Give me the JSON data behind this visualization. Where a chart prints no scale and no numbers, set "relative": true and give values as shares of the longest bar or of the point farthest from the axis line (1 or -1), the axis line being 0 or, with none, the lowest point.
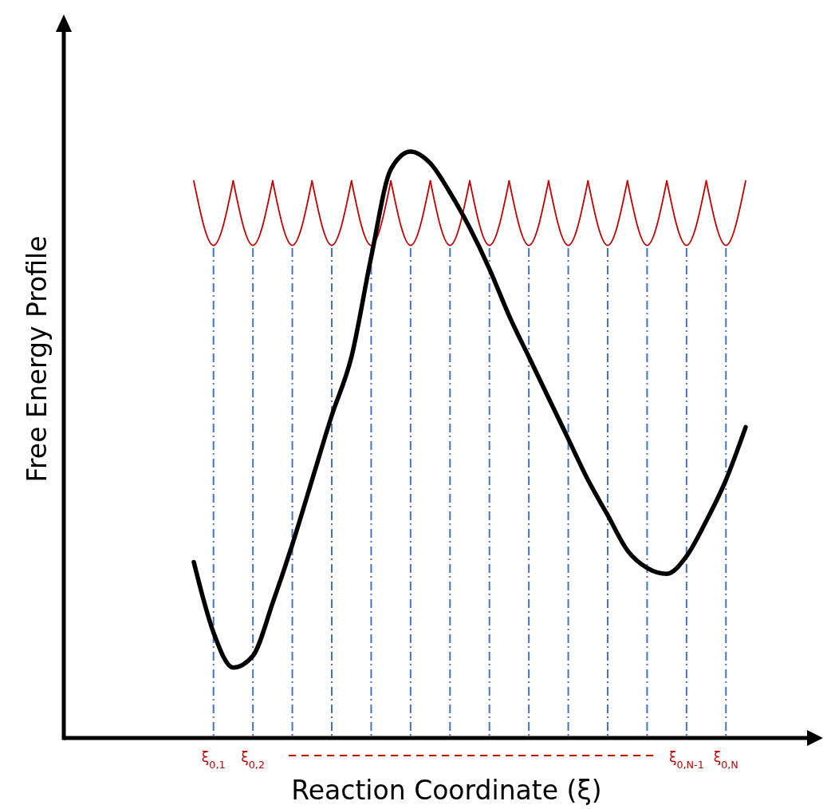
{
  "chart_data": {
    "type": "line",
    "relative": true,
    "xlabel": "Reaction Coordinate (ξ)",
    "ylabel": "Free Energy Profile",
    "tick_labels": "x",
    "categories": [
      null,
      "ξ$_{0,1}$",
      null,
      "ξ$_{0,2}$",
      null,
      null,
      null,
      null,
      null,
      null,
      null,
      null,
      null,
      null,
      null,
      null,
      null,
      null,
      null,
      null,
      null,
      null,
      null,
      null,
      null,
      "ξ$_{0,N-1}$",
      null,
      "ξ$_{0,N}$",
      null
    ],
    "series": [
      {
        "type": "bar",
        "color": "#4472c4",
        "line_style": "dashed",
        "values": [
          null,
          0.84,
          null,
          0.84,
          null,
          0.84,
          null,
          0.84,
          null,
          0.84,
          null,
          0.84,
          null,
          0.84,
          null,
          0.84,
          null,
          0.84,
          null,
          0.84,
          null,
          0.84,
          null,
          0.84,
          null,
          0.84,
          null,
          0.84,
          null
        ]
      },
      {
        "color": "#c00000",
        "values": [
          0.95,
          0.84,
          0.95,
          null,
          null,
          null,
          null,
          null,
          null,
          null,
          null,
          null,
          null,
          null,
          null,
          null,
          null,
          null,
          null,
          null,
          null,
          null,
          null,
          null,
          null,
          null,
          null,
          null,
          null
        ]
      },
      {
        "color": "#c00000",
        "values": [
          null,
          null,
          0.95,
          0.84,
          0.95,
          null,
          null,
          null,
          null,
          null,
          null,
          null,
          null,
          null,
          null,
          null,
          null,
          null,
          null,
          null,
          null,
          null,
          null,
          null,
          null,
          null,
          null,
          null,
          null
        ]
      },
      {
        "color": "#c00000",
        "values": [
          null,
          null,
          null,
          null,
          0.95,
          0.84,
          0.95,
          null,
          null,
          null,
          null,
          null,
          null,
          null,
          null,
          null,
          null,
          null,
          null,
          null,
          null,
          null,
          null,
          null,
          null,
          null,
          null,
          null,
          null
        ]
      },
      {
        "color": "#c00000",
        "values": [
          null,
          null,
          null,
          null,
          null,
          null,
          0.95,
          0.84,
          0.95,
          null,
          null,
          null,
          null,
          null,
          null,
          null,
          null,
          null,
          null,
          null,
          null,
          null,
          null,
          null,
          null,
          null,
          null,
          null,
          null
        ]
      },
      {
        "color": "#c00000",
        "values": [
          null,
          null,
          null,
          null,
          null,
          null,
          null,
          null,
          0.95,
          0.84,
          0.95,
          null,
          null,
          null,
          null,
          null,
          null,
          null,
          null,
          null,
          null,
          null,
          null,
          null,
          null,
          null,
          null,
          null,
          null
        ]
      },
      {
        "color": "#c00000",
        "values": [
          null,
          null,
          null,
          null,
          null,
          null,
          null,
          null,
          null,
          null,
          0.95,
          0.84,
          0.95,
          null,
          null,
          null,
          null,
          null,
          null,
          null,
          null,
          null,
          null,
          null,
          null,
          null,
          null,
          null,
          null
        ]
      },
      {
        "color": "#c00000",
        "values": [
          null,
          null,
          null,
          null,
          null,
          null,
          null,
          null,
          null,
          null,
          null,
          null,
          0.95,
          0.84,
          0.95,
          null,
          null,
          null,
          null,
          null,
          null,
          null,
          null,
          null,
          null,
          null,
          null,
          null,
          null
        ]
      },
      {
        "color": "#c00000",
        "values": [
          null,
          null,
          null,
          null,
          null,
          null,
          null,
          null,
          null,
          null,
          null,
          null,
          null,
          null,
          0.95,
          0.84,
          0.95,
          null,
          null,
          null,
          null,
          null,
          null,
          null,
          null,
          null,
          null,
          null,
          null
        ]
      },
      {
        "color": "#c00000",
        "values": [
          null,
          null,
          null,
          null,
          null,
          null,
          null,
          null,
          null,
          null,
          null,
          null,
          null,
          null,
          null,
          null,
          0.95,
          0.84,
          0.95,
          null,
          null,
          null,
          null,
          null,
          null,
          null,
          null,
          null,
          null
        ]
      },
      {
        "color": "#c00000",
        "values": [
          null,
          null,
          null,
          null,
          null,
          null,
          null,
          null,
          null,
          null,
          null,
          null,
          null,
          null,
          null,
          null,
          null,
          null,
          0.95,
          0.84,
          0.95,
          null,
          null,
          null,
          null,
          null,
          null,
          null,
          null
        ]
      },
      {
        "color": "#c00000",
        "values": [
          null,
          null,
          null,
          null,
          null,
          null,
          null,
          null,
          null,
          null,
          null,
          null,
          null,
          null,
          null,
          null,
          null,
          null,
          null,
          null,
          0.95,
          0.84,
          0.95,
          null,
          null,
          null,
          null,
          null,
          null
        ]
      },
      {
        "color": "#c00000",
        "values": [
          null,
          null,
          null,
          null,
          null,
          null,
          null,
          null,
          null,
          null,
          null,
          null,
          null,
          null,
          null,
          null,
          null,
          null,
          null,
          null,
          null,
          null,
          0.95,
          0.84,
          0.95,
          null,
          null,
          null,
          null
        ]
      },
      {
        "color": "#c00000",
        "values": [
          null,
          null,
          null,
          null,
          null,
          null,
          null,
          null,
          null,
          null,
          null,
          null,
          null,
          null,
          null,
          null,
          null,
          null,
          null,
          null,
          null,
          null,
          null,
          null,
          0.95,
          0.84,
          0.95,
          null,
          null
        ]
      },
      {
        "color": "#c00000",
        "values": [
          null,
          null,
          null,
          null,
          null,
          null,
          null,
          null,
          null,
          null,
          null,
          null,
          null,
          null,
          null,
          null,
          null,
          null,
          null,
          null,
          null,
          null,
          null,
          null,
          null,
          null,
          0.95,
          0.84,
          0.95
        ]
      },
      {
        "color": "#000000",
        "values": [
          0.3,
          0.18,
          0.12,
          0.14,
          0.23,
          0.33,
          0.44,
          0.55,
          0.65,
          0.82,
          0.97,
          1.0,
          0.98,
          0.93,
          0.87,
          0.8,
          0.72,
          0.65,
          0.58,
          0.51,
          0.44,
          0.38,
          0.32,
          0.29,
          0.28,
          0.31,
          0.37,
          0.44,
          0.53
        ]
      }
    ]
  }
}
